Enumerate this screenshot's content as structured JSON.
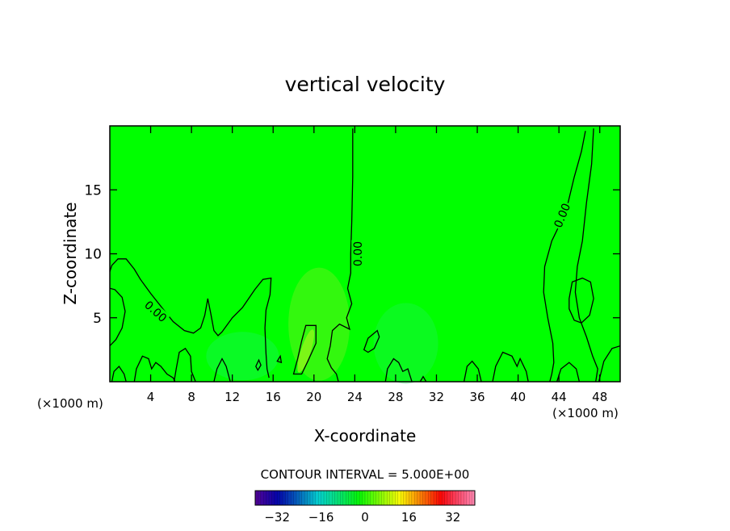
{
  "chart_data": {
    "type": "heatmap",
    "title": "vertical velocity",
    "xlabel": "X-coordinate",
    "ylabel": "Z-coordinate",
    "x_unit": "(×1000 m)",
    "x_unit_right": "(×1000 m)",
    "xlim": [
      0,
      50
    ],
    "ylim": [
      0,
      20
    ],
    "xticks": [
      4,
      8,
      12,
      16,
      20,
      24,
      28,
      32,
      36,
      40,
      44,
      48
    ],
    "yticks": [
      5,
      10,
      15
    ],
    "field_color": "#00ff00",
    "contour_labels": [
      {
        "text": "0.00",
        "x": 4.5,
        "y": 5.5,
        "angle": 42
      },
      {
        "text": "0.00",
        "x": 24.3,
        "y": 10.0,
        "angle": -90
      },
      {
        "text": "0.00",
        "x": 44.3,
        "y": 13.0,
        "angle": -68
      }
    ],
    "contour_interval_label": "CONTOUR INTERVAL = 5.000E+00",
    "colorbar": {
      "min": -40,
      "max": 40,
      "ticks": [
        -32,
        -16,
        0,
        16,
        32
      ],
      "tick_labels": [
        "−32",
        "−16",
        "0",
        "16",
        "32"
      ]
    }
  }
}
